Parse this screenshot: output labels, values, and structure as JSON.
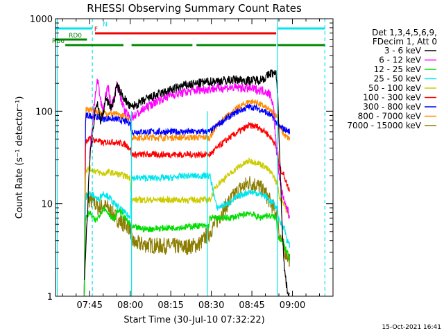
{
  "chart_data": {
    "type": "line",
    "title": "RHESSI Observing Summary Count Rates",
    "xlabel": "Start Time (30-Jul-10 07:32:22)",
    "ylabel": "Count Rate (s⁻¹ detector⁻¹)",
    "x_tick_labels": [
      "07:45",
      "08:00",
      "08:15",
      "08:30",
      "08:45",
      "09:00"
    ],
    "x_ticks_min": [
      45,
      60,
      75,
      90,
      105,
      120
    ],
    "xlim_min": [
      32.37,
      135
    ],
    "y_scale": "log",
    "y_tick_labels": [
      "1",
      "10",
      "100",
      "1000"
    ],
    "ylim": [
      1,
      1000
    ],
    "legend": {
      "position": "top-right",
      "header1": "Det 1,3,4,5,6,9,",
      "header2": "FDecim 1, Att 0"
    },
    "series": [
      {
        "name": "3 - 6 keV",
        "color": "#000000",
        "x": [
          43,
          44,
          45,
          46.5,
          47,
          48,
          49,
          50,
          51,
          52,
          53,
          54,
          55,
          57,
          60,
          63,
          66,
          70,
          75,
          80,
          85,
          90,
          95,
          100,
          103,
          105,
          108,
          110,
          112,
          114,
          114.5,
          115,
          116,
          117,
          118,
          119
        ],
        "y": [
          1.5,
          6,
          30,
          70,
          110,
          120,
          80,
          95,
          140,
          120,
          110,
          130,
          190,
          150,
          110,
          120,
          135,
          150,
          170,
          190,
          200,
          210,
          215,
          220,
          215,
          215,
          220,
          230,
          260,
          250,
          160,
          60,
          8,
          2,
          1.2,
          1
        ]
      },
      {
        "name": "6 - 12 keV",
        "color": "#ff00ff",
        "x": [
          45,
          46,
          47,
          48,
          49,
          50,
          51,
          52,
          53,
          54,
          55,
          56,
          57,
          58,
          60,
          63,
          66,
          70,
          75,
          80,
          85,
          90,
          95,
          100,
          105,
          110,
          112,
          113,
          114,
          115,
          116,
          117,
          118,
          119
        ],
        "y": [
          30,
          70,
          150,
          220,
          130,
          100,
          150,
          180,
          110,
          140,
          190,
          170,
          120,
          100,
          85,
          95,
          110,
          130,
          150,
          160,
          170,
          175,
          180,
          180,
          175,
          165,
          150,
          110,
          40,
          22,
          14,
          10,
          9,
          7
        ]
      },
      {
        "name": "12 - 25 keV",
        "color": "#00dd00",
        "x": [
          43,
          43.5,
          45,
          47,
          48,
          50,
          52,
          54,
          55,
          56,
          58,
          60,
          60.5,
          62,
          66,
          70,
          75,
          80,
          85,
          88,
          89,
          89.5,
          92,
          96,
          100,
          104,
          108,
          110,
          113,
          114,
          114.5,
          116,
          117,
          118,
          119
        ],
        "y": [
          1,
          7,
          8,
          6.5,
          7,
          9,
          8,
          6.5,
          8,
          8.5,
          7,
          6,
          5.5,
          5.5,
          5.3,
          5.4,
          5.5,
          5.6,
          5.8,
          5.7,
          5.7,
          7,
          7,
          7,
          7.3,
          8,
          7,
          7.5,
          7.2,
          7,
          4.5,
          4,
          3.5,
          3,
          2.5
        ]
      },
      {
        "name": "25 - 50 keV",
        "color": "#00e5ee",
        "x": [
          43,
          43.5,
          45,
          47,
          48,
          50,
          52,
          54,
          56,
          58,
          60,
          60.5,
          62,
          66,
          70,
          75,
          80,
          85,
          88,
          89,
          89.5,
          92,
          96,
          100,
          104,
          107,
          110,
          113,
          114,
          114.5,
          115,
          117,
          118,
          119
        ],
        "y": [
          1,
          12,
          13,
          12,
          11,
          13,
          12,
          10,
          9,
          8,
          7,
          19,
          19,
          19,
          19,
          19,
          20,
          20,
          20,
          20,
          20,
          9,
          10,
          12,
          13.5,
          13,
          12,
          10,
          9,
          9,
          6.5,
          5.5,
          4,
          3.5
        ]
      },
      {
        "name": "50 - 100 keV",
        "color": "#cccc00",
        "x": [
          43,
          43.5,
          45,
          48,
          50,
          52,
          55,
          58,
          60,
          60.5,
          61,
          66,
          70,
          75,
          80,
          85,
          88,
          89,
          89.5,
          92,
          96,
          100,
          104,
          107,
          110,
          113,
          114,
          114.5,
          115,
          117,
          118,
          119
        ],
        "y": [
          1,
          23,
          24,
          22,
          21,
          22,
          21,
          20,
          19,
          11,
          11,
          11,
          11,
          11,
          11,
          11,
          11,
          11,
          11,
          16,
          20,
          25,
          29,
          28,
          25,
          20,
          17,
          17,
          12,
          10,
          8,
          7
        ]
      },
      {
        "name": "100 - 300 keV",
        "color": "#ff0000",
        "x": [
          43,
          43.5,
          45,
          48,
          50,
          52,
          55,
          58,
          60,
          60.5,
          61,
          66,
          70,
          75,
          80,
          85,
          88,
          89,
          89.5,
          92,
          96,
          100,
          104,
          107,
          110,
          113,
          114,
          114.5,
          115,
          117,
          118,
          119
        ],
        "y": [
          1,
          48,
          50,
          48,
          45,
          47,
          46,
          44,
          40,
          34,
          34,
          34,
          34,
          34,
          34,
          34,
          34,
          34,
          34,
          40,
          50,
          60,
          70,
          68,
          60,
          48,
          40,
          40,
          25,
          20,
          16,
          14
        ]
      },
      {
        "name": "300 - 800 keV",
        "color": "#0000ff",
        "x": [
          43,
          43.5,
          45,
          48,
          50,
          52,
          55,
          58,
          60,
          60.5,
          61,
          66,
          70,
          75,
          80,
          85,
          88,
          89,
          89.5,
          92,
          96,
          100,
          104,
          107,
          110,
          113,
          114,
          114.5,
          115,
          117,
          118,
          119
        ],
        "y": [
          1,
          88,
          90,
          86,
          82,
          84,
          82,
          78,
          75,
          60,
          60,
          60,
          60,
          60,
          60,
          60,
          60,
          60,
          60,
          70,
          85,
          100,
          112,
          108,
          98,
          85,
          75,
          75,
          68,
          64,
          62,
          60
        ]
      },
      {
        "name": "800 - 7000 keV",
        "color": "#ff8c00",
        "x": [
          43,
          43.5,
          45,
          48,
          50,
          52,
          55,
          58,
          60,
          60.5,
          61,
          66,
          70,
          75,
          80,
          85,
          88,
          89,
          89.5,
          92,
          96,
          100,
          104,
          107,
          110,
          113,
          114,
          114.5,
          115,
          117,
          118,
          119
        ],
        "y": [
          1,
          103,
          105,
          98,
          95,
          96,
          92,
          88,
          85,
          52,
          52,
          52,
          52,
          52,
          52,
          52,
          52,
          52,
          52,
          70,
          90,
          110,
          128,
          124,
          110,
          95,
          90,
          90,
          70,
          55,
          52,
          50
        ]
      },
      {
        "name": "7000 - 15000 keV",
        "color": "#8b7d00",
        "x": [
          43,
          43.5,
          45,
          47,
          48,
          50,
          52,
          54,
          56,
          58,
          60,
          60.5,
          62,
          66,
          70,
          75,
          80,
          85,
          87,
          88,
          89,
          89.5,
          92,
          96,
          100,
          104,
          107,
          110,
          113,
          114,
          114.5,
          115,
          116,
          117,
          118,
          119
        ],
        "y": [
          1,
          12,
          11,
          10,
          9,
          9.5,
          9,
          7.5,
          6.5,
          6,
          5.5,
          4,
          3.7,
          3.6,
          3.5,
          3.5,
          3.4,
          3.6,
          4,
          4.5,
          4.5,
          5,
          6.5,
          10,
          14,
          17,
          16,
          13,
          9,
          8,
          8,
          5,
          4,
          3.2,
          2.8,
          2.5
        ]
      }
    ],
    "annotations": {
      "bars": [
        {
          "label": "N",
          "color": "#00e5ee",
          "segments": [
            [
              32.4,
              46
            ],
            [
              114.5,
              132
            ]
          ]
        },
        {
          "label": "F",
          "color": "#ee0000",
          "segments": [
            [
              47,
              114
            ]
          ]
        },
        {
          "label": "RD0",
          "color": "#008800",
          "segments": [
            [
              32.4,
              44
            ]
          ]
        },
        {
          "label": "RB6",
          "color": "#008800",
          "segments": [
            [
              36,
              57.5
            ],
            [
              60.5,
              83
            ],
            [
              84.5,
              114
            ],
            [
              114.5,
              132
            ]
          ]
        }
      ],
      "markers": [
        {
          "color": "#00e5ee",
          "style": "solid",
          "x": [
            33,
            114.5
          ]
        },
        {
          "color": "#00e5ee",
          "style": "dashed",
          "x": [
            46,
            132
          ]
        },
        {
          "color": "#00e5ee",
          "style": "solid_partial",
          "x": [
            60.5,
            88.5
          ]
        }
      ]
    }
  },
  "footer": {
    "timestamp": "15-Oct-2021 16:41"
  }
}
